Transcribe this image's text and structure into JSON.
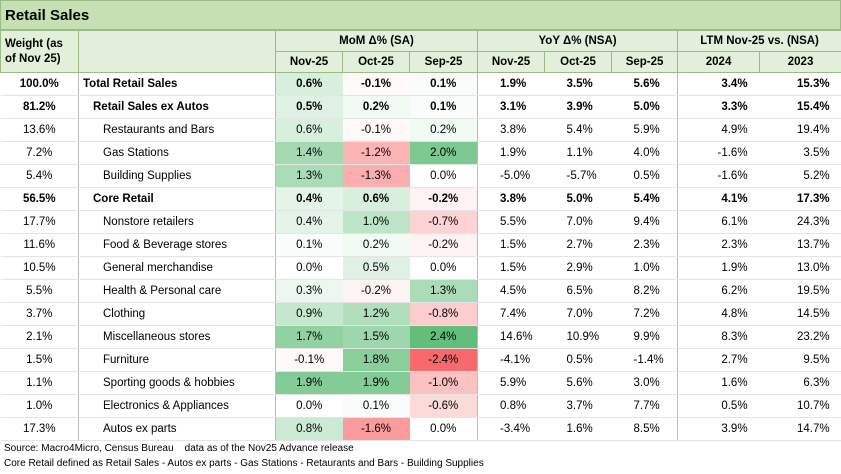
{
  "title": "Retail Sales",
  "header": {
    "weight": "Weight (as of Nov 25)",
    "groups": [
      {
        "label": "MoM Δ% (SA)",
        "columns": [
          "Nov-25",
          "Oct-25",
          "Sep-25"
        ]
      },
      {
        "label": "YoY Δ% (NSA)",
        "columns": [
          "Nov-25",
          "Oct-25",
          "Sep-25"
        ]
      },
      {
        "label": "LTM Nov-25 vs. (NSA)",
        "columns": [
          "2024",
          "2023"
        ]
      }
    ]
  },
  "rows": [
    {
      "weight": "100.0%",
      "name": "Total Retail Sales",
      "bold": true,
      "values": [
        "0.6%",
        "-0.1%",
        "0.1%",
        "1.9%",
        "3.5%",
        "5.6%",
        "3.4%",
        "15.3%"
      ]
    },
    {
      "weight": "81.2%",
      "name": "Retail Sales ex Autos",
      "bold": true,
      "values": [
        "0.5%",
        "0.2%",
        "0.1%",
        "3.1%",
        "3.9%",
        "5.0%",
        "3.3%",
        "15.4%"
      ]
    },
    {
      "weight": "13.6%",
      "name": "Restaurants and Bars",
      "values": [
        "0.6%",
        "-0.1%",
        "0.2%",
        "3.8%",
        "5.4%",
        "5.9%",
        "4.9%",
        "19.4%"
      ]
    },
    {
      "weight": "7.2%",
      "name": "Gas Stations",
      "values": [
        "1.4%",
        "-1.2%",
        "2.0%",
        "1.9%",
        "1.1%",
        "4.0%",
        "-1.6%",
        "3.5%"
      ]
    },
    {
      "weight": "5.4%",
      "name": "Building Supplies",
      "values": [
        "1.3%",
        "-1.3%",
        "0.0%",
        "-5.0%",
        "-5.7%",
        "0.5%",
        "-1.6%",
        "5.2%"
      ]
    },
    {
      "weight": "56.5%",
      "name": "Core Retail",
      "bold": true,
      "values": [
        "0.4%",
        "0.6%",
        "-0.2%",
        "3.8%",
        "5.0%",
        "5.4%",
        "4.1%",
        "17.3%"
      ]
    },
    {
      "weight": "17.7%",
      "name": "Nonstore retailers",
      "values": [
        "0.4%",
        "1.0%",
        "-0.7%",
        "5.5%",
        "7.0%",
        "9.4%",
        "6.1%",
        "24.3%"
      ]
    },
    {
      "weight": "11.6%",
      "name": "Food & Beverage stores",
      "values": [
        "0.1%",
        "0.2%",
        "-0.2%",
        "1.5%",
        "2.7%",
        "2.3%",
        "2.3%",
        "13.7%"
      ]
    },
    {
      "weight": "10.5%",
      "name": "General merchandise",
      "values": [
        "0.0%",
        "0.5%",
        "0.0%",
        "1.5%",
        "2.9%",
        "1.0%",
        "1.9%",
        "13.0%"
      ]
    },
    {
      "weight": "5.5%",
      "name": "Health & Personal care",
      "values": [
        "0.3%",
        "-0.2%",
        "1.3%",
        "4.5%",
        "6.5%",
        "8.2%",
        "6.2%",
        "19.5%"
      ]
    },
    {
      "weight": "3.7%",
      "name": "Clothing",
      "values": [
        "0.9%",
        "1.2%",
        "-0.8%",
        "7.4%",
        "7.0%",
        "7.2%",
        "4.8%",
        "14.5%"
      ]
    },
    {
      "weight": "2.1%",
      "name": "Miscellaneous stores",
      "values": [
        "1.7%",
        "1.5%",
        "2.4%",
        "14.6%",
        "10.9%",
        "9.9%",
        "8.3%",
        "23.2%"
      ]
    },
    {
      "weight": "1.5%",
      "name": "Furniture",
      "values": [
        "-0.1%",
        "1.8%",
        "-2.4%",
        "-4.1%",
        "0.5%",
        "-1.4%",
        "2.7%",
        "9.5%"
      ]
    },
    {
      "weight": "1.1%",
      "name": "Sporting goods & hobbies",
      "values": [
        "1.9%",
        "1.9%",
        "-1.0%",
        "5.9%",
        "5.6%",
        "3.0%",
        "1.6%",
        "6.3%"
      ]
    },
    {
      "weight": "1.0%",
      "name": "Electronics & Appliances",
      "values": [
        "0.0%",
        "0.1%",
        "-0.6%",
        "0.8%",
        "3.7%",
        "7.7%",
        "0.5%",
        "10.7%"
      ]
    },
    {
      "weight": "17.3%",
      "name": "Autos ex parts",
      "values": [
        "0.8%",
        "-1.6%",
        "0.0%",
        "-3.4%",
        "1.6%",
        "8.5%",
        "3.9%",
        "14.7%"
      ]
    }
  ],
  "notes": [
    "Source: Macro4Micro, Census Bureau    data as of the Nov25 Advance release",
    "Core Retail defined as Retail Sales - Autos ex parts - Gas Stations - Retaurants and Bars - Building Supplies"
  ]
}
